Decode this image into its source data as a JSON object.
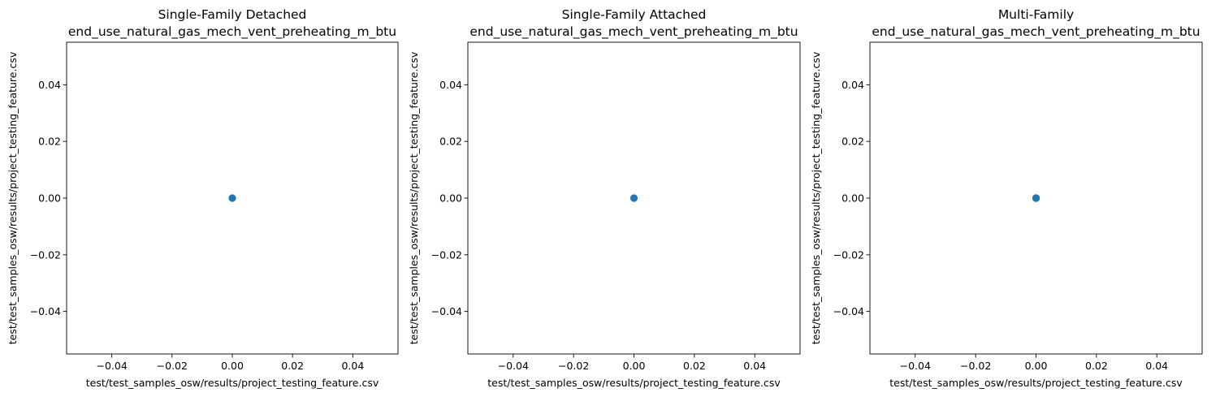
{
  "chart_data": [
    {
      "type": "scatter",
      "title": [
        "Single-Family Detached",
        "end_use_natural_gas_mech_vent_preheating_m_btu"
      ],
      "xlabel": "test/test_samples_osw/results/project_testing_feature.csv",
      "ylabel": "test/test_samples_osw/results/project_testing_feature.csv",
      "xlim": [
        -0.055,
        0.055
      ],
      "ylim": [
        -0.055,
        0.055
      ],
      "xticks": [
        -0.04,
        -0.02,
        0.0,
        0.02,
        0.04
      ],
      "xtick_labels": [
        "−0.04",
        "−0.02",
        "0.00",
        "0.02",
        "0.04"
      ],
      "yticks": [
        -0.04,
        -0.02,
        0.0,
        0.02,
        0.04
      ],
      "ytick_labels": [
        "−0.04",
        "−0.02",
        "0.00",
        "0.02",
        "0.04"
      ],
      "grid": false,
      "marker_color": "#1f77b4",
      "points": [
        {
          "x": 0,
          "y": 0
        }
      ]
    },
    {
      "type": "scatter",
      "title": [
        "Single-Family Attached",
        "end_use_natural_gas_mech_vent_preheating_m_btu"
      ],
      "xlabel": "test/test_samples_osw/results/project_testing_feature.csv",
      "ylabel": "test/test_samples_osw/results/project_testing_feature.csv",
      "xlim": [
        -0.055,
        0.055
      ],
      "ylim": [
        -0.055,
        0.055
      ],
      "xticks": [
        -0.04,
        -0.02,
        0.0,
        0.02,
        0.04
      ],
      "xtick_labels": [
        "−0.04",
        "−0.02",
        "0.00",
        "0.02",
        "0.04"
      ],
      "yticks": [
        -0.04,
        -0.02,
        0.0,
        0.02,
        0.04
      ],
      "ytick_labels": [
        "−0.04",
        "−0.02",
        "0.00",
        "0.02",
        "0.04"
      ],
      "grid": false,
      "marker_color": "#1f77b4",
      "points": [
        {
          "x": 0,
          "y": 0
        }
      ]
    },
    {
      "type": "scatter",
      "title": [
        "Multi-Family",
        "end_use_natural_gas_mech_vent_preheating_m_btu"
      ],
      "xlabel": "test/test_samples_osw/results/project_testing_feature.csv",
      "ylabel": "test/test_samples_osw/results/project_testing_feature.csv",
      "xlim": [
        -0.055,
        0.055
      ],
      "ylim": [
        -0.055,
        0.055
      ],
      "xticks": [
        -0.04,
        -0.02,
        0.0,
        0.02,
        0.04
      ],
      "xtick_labels": [
        "−0.04",
        "−0.02",
        "0.00",
        "0.02",
        "0.04"
      ],
      "yticks": [
        -0.04,
        -0.02,
        0.0,
        0.02,
        0.04
      ],
      "ytick_labels": [
        "−0.04",
        "−0.02",
        "0.00",
        "0.02",
        "0.04"
      ],
      "grid": false,
      "marker_color": "#1f77b4",
      "points": [
        {
          "x": 0,
          "y": 0
        },
        {
          "x": 0,
          "y": 0
        },
        {
          "x": 0,
          "y": 0
        }
      ]
    }
  ]
}
